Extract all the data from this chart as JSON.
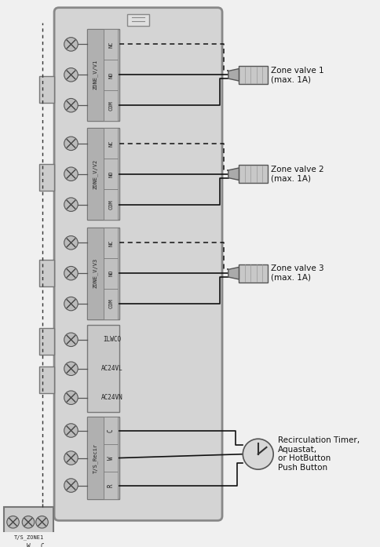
{
  "fig_bg": "#f0f0f0",
  "panel_bg": "#d4d4d4",
  "panel_edge": "#888888",
  "tb_bg": "#c8c8c8",
  "tb_edge": "#777777",
  "label_col_bg": "#b0b0b0",
  "term_col_bg": "#c0c0c0",
  "screw_bg": "#bbbbbb",
  "valve_body": "#c8c8c8",
  "valve_nozzle": "#aaaaaa",
  "recir_bg": "#d8d8d8",
  "wire_color": "#111111",
  "text_color": "#222222",
  "zone_labels": [
    "ZONE_V/V1",
    "ZONE_V/V2",
    "ZONE_V/V3"
  ],
  "zone_terminals": [
    [
      "NC",
      "NO",
      "COM"
    ],
    [
      "NC",
      "NO",
      "COM"
    ],
    [
      "NC",
      "NO",
      "COM"
    ]
  ],
  "single_labels": [
    "ILWCO",
    "AC24VL",
    "AC24VN"
  ],
  "recir_label": "T/S_Recir",
  "recir_terminals": [
    "C",
    "W",
    "R"
  ],
  "valve_labels": [
    "Zone valve 1\n(max. 1A)",
    "Zone valve 2\n(max. 1A)",
    "Zone valve 3\n(max. 1A)"
  ],
  "recir_text": "Recirculation Timer,\nAquastat,\nor HotButton\nPush Button",
  "ts_zone_label": "T/S_ZONE1",
  "ts_terminals": [
    "W",
    "C"
  ]
}
